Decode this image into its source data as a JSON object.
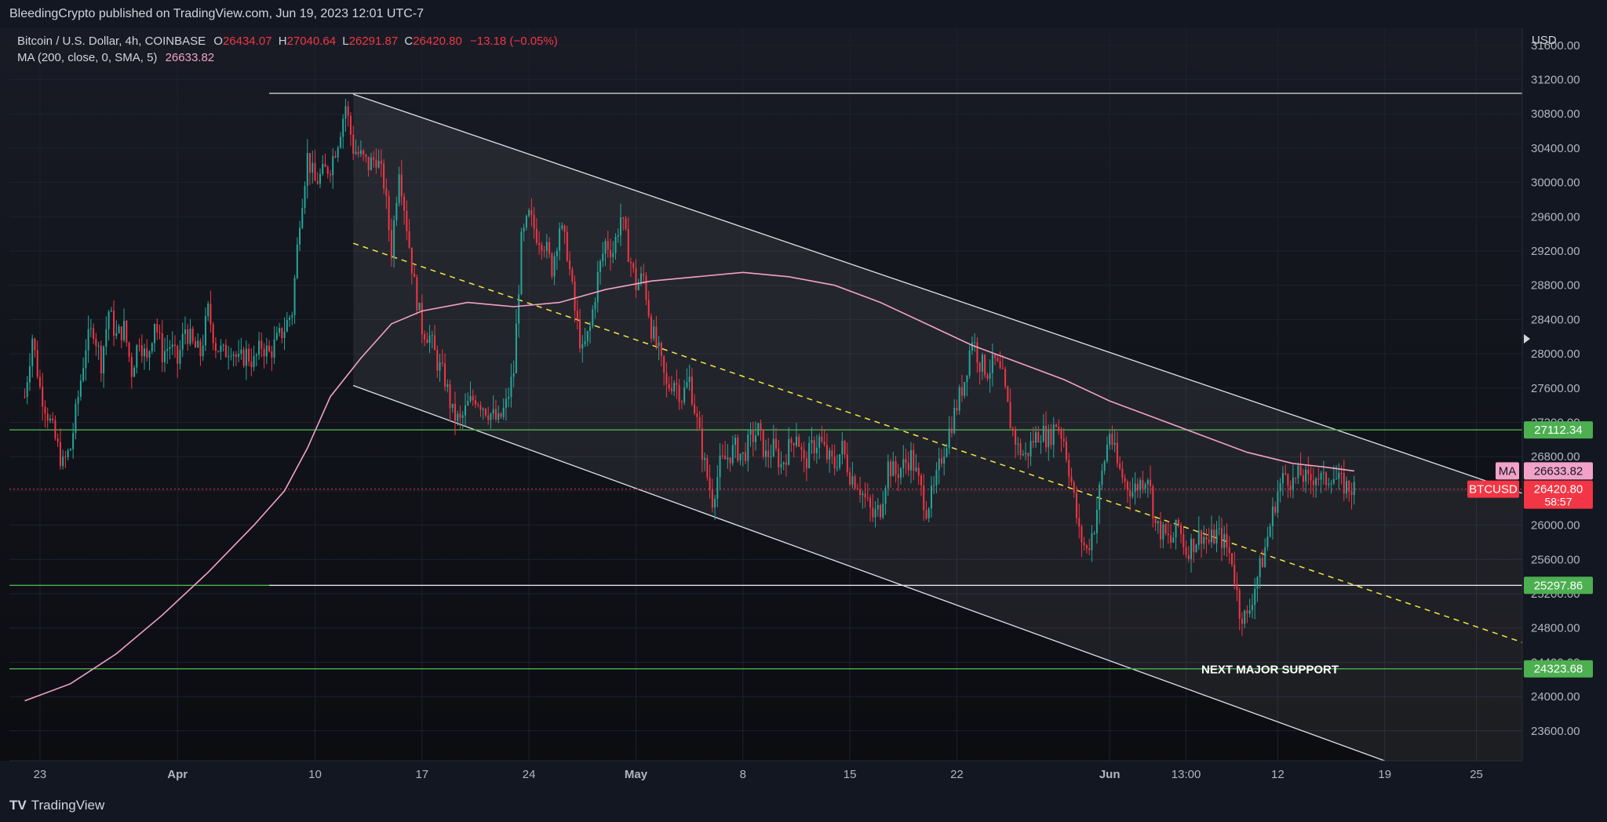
{
  "header": {
    "published": "BleedingCrypto published on TradingView.com, Jun 19, 2023 12:01 UTC-7"
  },
  "legend": {
    "symbol": "Bitcoin / U.S. Dollar, 4h, COINBASE",
    "o_label": "O",
    "o_value": "26434.07",
    "h_label": "H",
    "h_value": "27040.64",
    "l_label": "L",
    "l_value": "26291.87",
    "c_label": "C",
    "c_value": "26420.80",
    "change": "−13.18 (−0.05%)",
    "ma_label": "MA (200, close, 0, SMA, 5)",
    "ma_value": "26633.82"
  },
  "footer": {
    "brand": "TradingView"
  },
  "chart_data": {
    "type": "candlestick",
    "symbol": "BTCUSD",
    "interval": "4h",
    "currency": "USD",
    "y_ticks": [
      23600,
      24000,
      24400,
      24800,
      25200,
      25600,
      26000,
      26400,
      26800,
      27200,
      27600,
      28000,
      28400,
      28800,
      29200,
      29600,
      30000,
      30400,
      30800,
      31200,
      31600
    ],
    "x_ticks": [
      {
        "label": "23",
        "day": -9
      },
      {
        "label": "Apr",
        "day": 0
      },
      {
        "label": "10",
        "day": 9
      },
      {
        "label": "17",
        "day": 16
      },
      {
        "label": "24",
        "day": 23
      },
      {
        "label": "May",
        "day": 30
      },
      {
        "label": "8",
        "day": 37
      },
      {
        "label": "15",
        "day": 44
      },
      {
        "label": "22",
        "day": 51
      },
      {
        "label": "Jun",
        "day": 61
      },
      {
        "label": "13:00",
        "day": 66
      },
      {
        "label": "12",
        "day": 72
      },
      {
        "label": "19",
        "day": 79
      },
      {
        "label": "25",
        "day": 85
      }
    ],
    "price_path": [
      [
        -10,
        27500
      ],
      [
        -9.5,
        28200
      ],
      [
        -9,
        27600
      ],
      [
        -8.5,
        27300
      ],
      [
        -8,
        27000
      ],
      [
        -7.5,
        26700
      ],
      [
        -7,
        26900
      ],
      [
        -6.5,
        27500
      ],
      [
        -6,
        28100
      ],
      [
        -5.5,
        28300
      ],
      [
        -5,
        27900
      ],
      [
        -4.5,
        28500
      ],
      [
        -4,
        28200
      ],
      [
        -3.5,
        28300
      ],
      [
        -3,
        27800
      ],
      [
        -2.5,
        28200
      ],
      [
        -2,
        27900
      ],
      [
        -1.5,
        28400
      ],
      [
        -1,
        28000
      ],
      [
        -0.5,
        28100
      ],
      [
        0,
        27900
      ],
      [
        0.5,
        28300
      ],
      [
        1,
        28100
      ],
      [
        1.5,
        28000
      ],
      [
        2,
        28500
      ],
      [
        2.5,
        28100
      ],
      [
        3,
        28000
      ],
      [
        3.5,
        28100
      ],
      [
        4,
        27900
      ],
      [
        4.5,
        28000
      ],
      [
        5,
        27900
      ],
      [
        5.5,
        28100
      ],
      [
        6,
        28000
      ],
      [
        7,
        28300
      ],
      [
        7.5,
        28500
      ],
      [
        8,
        29600
      ],
      [
        8.5,
        30300
      ],
      [
        9,
        30000
      ],
      [
        9.5,
        30100
      ],
      [
        10,
        30200
      ],
      [
        10.5,
        30500
      ],
      [
        11,
        30900
      ],
      [
        11.5,
        30400
      ],
      [
        12,
        30300
      ],
      [
        12.5,
        30200
      ],
      [
        13,
        30300
      ],
      [
        13.5,
        30000
      ],
      [
        14,
        29200
      ],
      [
        14.5,
        30200
      ],
      [
        15,
        29500
      ],
      [
        15.5,
        28800
      ],
      [
        16,
        28300
      ],
      [
        16.5,
        28200
      ],
      [
        17,
        27900
      ],
      [
        17.5,
        27700
      ],
      [
        18,
        27300
      ],
      [
        18.5,
        27200
      ],
      [
        19,
        27400
      ],
      [
        19.5,
        27500
      ],
      [
        20,
        27400
      ],
      [
        20.5,
        27300
      ],
      [
        21,
        27200
      ],
      [
        21.5,
        27400
      ],
      [
        22,
        27800
      ],
      [
        22.5,
        29300
      ],
      [
        23,
        29600
      ],
      [
        23.5,
        29400
      ],
      [
        24,
        29300
      ],
      [
        24.5,
        29000
      ],
      [
        25,
        29500
      ],
      [
        25.5,
        29200
      ],
      [
        26,
        28500
      ],
      [
        26.5,
        28000
      ],
      [
        27,
        28300
      ],
      [
        27.5,
        28900
      ],
      [
        28,
        29300
      ],
      [
        28.5,
        29200
      ],
      [
        29,
        29600
      ],
      [
        29.5,
        29200
      ],
      [
        30,
        28800
      ],
      [
        30.5,
        28900
      ],
      [
        31,
        28300
      ],
      [
        31.5,
        28000
      ],
      [
        32,
        27600
      ],
      [
        32.5,
        27700
      ],
      [
        33,
        27500
      ],
      [
        33.5,
        27700
      ],
      [
        34,
        27200
      ],
      [
        34.5,
        26700
      ],
      [
        35,
        26300
      ],
      [
        35.5,
        26700
      ],
      [
        36,
        26800
      ],
      [
        36.5,
        26900
      ],
      [
        37,
        26800
      ],
      [
        37.5,
        27000
      ],
      [
        38,
        27100
      ],
      [
        38.5,
        26800
      ],
      [
        39,
        26900
      ],
      [
        39.5,
        26700
      ],
      [
        40,
        26900
      ],
      [
        40.5,
        27100
      ],
      [
        41,
        26700
      ],
      [
        41.5,
        26900
      ],
      [
        42,
        27000
      ],
      [
        42.5,
        26800
      ],
      [
        43,
        26700
      ],
      [
        43.5,
        26900
      ],
      [
        44,
        26600
      ],
      [
        44.5,
        26500
      ],
      [
        45,
        26300
      ],
      [
        45.5,
        26100
      ],
      [
        46,
        26200
      ],
      [
        46.5,
        26700
      ],
      [
        47,
        26600
      ],
      [
        47.5,
        26700
      ],
      [
        48,
        26800
      ],
      [
        48.5,
        26500
      ],
      [
        49,
        26200
      ],
      [
        49.5,
        26400
      ],
      [
        50,
        26800
      ],
      [
        50.5,
        27100
      ],
      [
        51,
        27400
      ],
      [
        51.5,
        27700
      ],
      [
        52,
        28200
      ],
      [
        52.5,
        27900
      ],
      [
        53,
        27800
      ],
      [
        53.5,
        27900
      ],
      [
        54,
        27700
      ],
      [
        54.5,
        27200
      ],
      [
        55,
        26900
      ],
      [
        55.5,
        26800
      ],
      [
        56,
        27000
      ],
      [
        56.5,
        27100
      ],
      [
        57,
        27000
      ],
      [
        57.5,
        27200
      ],
      [
        58,
        27000
      ],
      [
        58.5,
        26500
      ],
      [
        59,
        25900
      ],
      [
        59.5,
        25700
      ],
      [
        60,
        26000
      ],
      [
        60.5,
        26600
      ],
      [
        61,
        27100
      ],
      [
        61.5,
        26700
      ],
      [
        62,
        26500
      ],
      [
        62.5,
        26400
      ],
      [
        63,
        26500
      ],
      [
        63.5,
        26600
      ],
      [
        64,
        26000
      ],
      [
        64.5,
        25900
      ],
      [
        65,
        25800
      ],
      [
        65.5,
        26000
      ],
      [
        66,
        25700
      ],
      [
        66.5,
        25800
      ],
      [
        67,
        25900
      ],
      [
        67.5,
        25800
      ],
      [
        68,
        25900
      ],
      [
        68.5,
        25800
      ],
      [
        69,
        25600
      ],
      [
        69.5,
        25000
      ],
      [
        70,
        24900
      ],
      [
        70.5,
        25300
      ],
      [
        71,
        25600
      ],
      [
        71.5,
        26000
      ],
      [
        72,
        26400
      ],
      [
        72.5,
        26600
      ],
      [
        73,
        26500
      ],
      [
        73.5,
        26600
      ],
      [
        74,
        26500
      ],
      [
        74.5,
        26600
      ],
      [
        75,
        26500
      ],
      [
        75.5,
        26600
      ],
      [
        76,
        26500
      ],
      [
        76.5,
        26450
      ],
      [
        77,
        26420
      ]
    ],
    "ma": {
      "label": "MA",
      "value": 26633.82,
      "color": "#f2a2c8",
      "points": [
        [
          -10,
          23950
        ],
        [
          -7,
          24150
        ],
        [
          -4,
          24500
        ],
        [
          -1,
          24950
        ],
        [
          2,
          25450
        ],
        [
          5,
          26000
        ],
        [
          7,
          26400
        ],
        [
          8.5,
          26900
        ],
        [
          10,
          27500
        ],
        [
          12,
          27950
        ],
        [
          14,
          28350
        ],
        [
          16,
          28500
        ],
        [
          19,
          28600
        ],
        [
          22,
          28550
        ],
        [
          25,
          28600
        ],
        [
          28,
          28750
        ],
        [
          31,
          28850
        ],
        [
          34,
          28900
        ],
        [
          37,
          28950
        ],
        [
          40,
          28900
        ],
        [
          43,
          28800
        ],
        [
          46,
          28600
        ],
        [
          49,
          28350
        ],
        [
          52,
          28100
        ],
        [
          55,
          27900
        ],
        [
          58,
          27700
        ],
        [
          61,
          27450
        ],
        [
          64,
          27250
        ],
        [
          67,
          27050
        ],
        [
          70,
          26850
        ],
        [
          73,
          26720
        ],
        [
          75,
          26680
        ],
        [
          77,
          26633.82
        ]
      ]
    },
    "channel": {
      "upper": [
        [
          11.5,
          31030
        ],
        [
          91,
          26190
        ]
      ],
      "lower": [
        [
          11.5,
          27630
        ],
        [
          79,
          23250
        ]
      ],
      "mid": [
        [
          11.5,
          29290
        ],
        [
          91,
          24450
        ]
      ],
      "shade_from_day": 11.5
    },
    "levels": [
      {
        "price": 31040,
        "color": "#e0e3eb",
        "from_day": 6,
        "label": ""
      },
      {
        "price": 27112.34,
        "color": "#4caf50",
        "from_day": -11,
        "label": "27112.34"
      },
      {
        "price": 25297.86,
        "color": "#e0e3eb",
        "from_day": 6,
        "label": "25297.86",
        "green_segment_before": true
      },
      {
        "price": 24323.68,
        "color": "#4caf50",
        "from_day": -11,
        "label": "24323.68"
      }
    ],
    "annotations": [
      {
        "text": "NEXT MAJOR SUPPORT",
        "day": 67,
        "price": 24270
      }
    ],
    "price_labels": [
      {
        "tag": "MA",
        "value": "26633.82",
        "sub": "",
        "price": 26633.82,
        "bg": "#f2a2c8",
        "fg": "#131722"
      },
      {
        "tag": "BTCUSD",
        "value": "26420.80",
        "sub": "58:57",
        "price": 26420.8,
        "bg": "#f23645",
        "fg": "#ffffff"
      }
    ],
    "current_price": 26420.8,
    "ylim": [
      23250,
      31800
    ],
    "xlim": [
      -11,
      88
    ],
    "colors": {
      "up": "#26a69a",
      "down": "#f23645",
      "grid": "#1e222d",
      "axis_text": "#b2b5be"
    }
  }
}
